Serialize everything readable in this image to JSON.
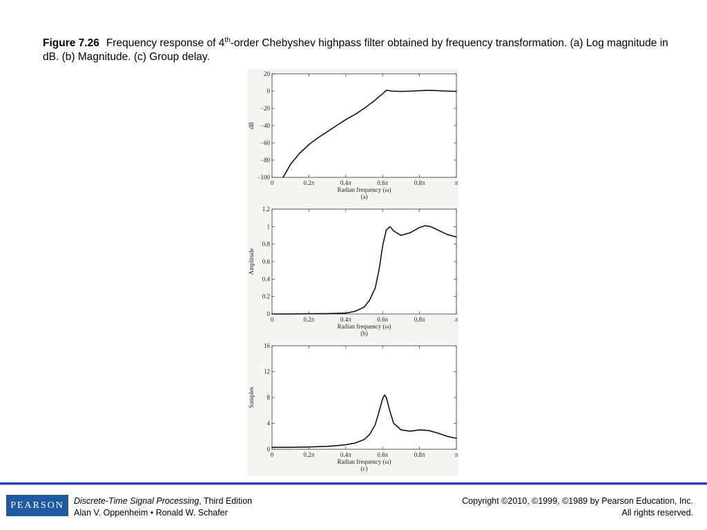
{
  "caption": {
    "figure_label": "Figure 7.26",
    "text_before_sup": "Frequency response of 4",
    "superscript": "th",
    "text_after_sup": "-order Chebyshev highpass filter obtained by frequency transformation. (a) Log magnitude in dB. (b) Magnitude. (c) Group delay."
  },
  "footer": {
    "logo": "PEARSON",
    "book_title": "Discrete-Time Signal Processing",
    "edition": ", Third Edition",
    "authors": "Alan V. Oppenheim • Ronald W. Schafer",
    "copyright": "Copyright ©2010, ©1999, ©1989 by Pearson Education, Inc.",
    "rights": "All rights reserved."
  },
  "chart_data": [
    {
      "type": "line",
      "panel_label": "(a)",
      "xlabel": "Radian frequency (ω)",
      "ylabel": "dB",
      "xlim": [
        0,
        1
      ],
      "xticks": [
        0,
        0.2,
        0.4,
        0.6,
        0.8,
        1
      ],
      "xtick_labels": [
        "0",
        "0.2π",
        "0.4π",
        "0.6π",
        "0.8π",
        "π"
      ],
      "ylim": [
        -100,
        20
      ],
      "yticks": [
        20,
        0,
        -20,
        -40,
        -60,
        -80,
        -100
      ],
      "ytick_labels": [
        "20",
        "0",
        "−20",
        "−40",
        "−60",
        "−80",
        "−100"
      ],
      "x": [
        0.06,
        0.1,
        0.15,
        0.2,
        0.25,
        0.3,
        0.35,
        0.4,
        0.45,
        0.5,
        0.55,
        0.6,
        0.62,
        0.65,
        0.7,
        0.75,
        0.8,
        0.85,
        0.9,
        0.95,
        1.0
      ],
      "y": [
        -100,
        -85,
        -72,
        -62,
        -54,
        -47,
        -40,
        -33,
        -27,
        -20,
        -12,
        -3,
        1,
        0,
        -0.5,
        0,
        0.5,
        1,
        0.5,
        0,
        -0.3
      ]
    },
    {
      "type": "line",
      "panel_label": "(b)",
      "xlabel": "Radian frequency (ω)",
      "ylabel": "Amplitude",
      "xlim": [
        0,
        1
      ],
      "xticks": [
        0,
        0.2,
        0.4,
        0.6,
        0.8,
        1
      ],
      "xtick_labels": [
        "0",
        "0.2π",
        "0.4π",
        "0.6π",
        "0.8π",
        "π"
      ],
      "ylim": [
        0,
        1.2
      ],
      "yticks": [
        1.2,
        1,
        0.8,
        0.6,
        0.4,
        0.2,
        0
      ],
      "ytick_labels": [
        "1.2",
        "1",
        "0.8",
        "0.6",
        "0.4",
        "0.2",
        "0"
      ],
      "x": [
        0,
        0.1,
        0.2,
        0.3,
        0.4,
        0.45,
        0.5,
        0.53,
        0.56,
        0.58,
        0.6,
        0.62,
        0.64,
        0.66,
        0.7,
        0.75,
        0.8,
        0.83,
        0.86,
        0.9,
        0.95,
        1.0
      ],
      "y": [
        0,
        0.001,
        0.003,
        0.005,
        0.01,
        0.03,
        0.08,
        0.16,
        0.3,
        0.5,
        0.78,
        0.96,
        1.0,
        0.95,
        0.9,
        0.93,
        0.99,
        1.01,
        1.0,
        0.96,
        0.91,
        0.88
      ]
    },
    {
      "type": "line",
      "panel_label": "(c)",
      "xlabel": "Radian frequency (ω)",
      "ylabel": "Samples",
      "xlim": [
        0,
        1
      ],
      "xticks": [
        0,
        0.2,
        0.4,
        0.6,
        0.8,
        1
      ],
      "xtick_labels": [
        "0",
        "0.2π",
        "0.4π",
        "0.6π",
        "0.8π",
        "π"
      ],
      "ylim": [
        0,
        16
      ],
      "yticks": [
        16,
        12,
        8,
        4,
        0
      ],
      "ytick_labels": [
        "16",
        "12",
        "8",
        "4",
        "0"
      ],
      "x": [
        0,
        0.1,
        0.2,
        0.3,
        0.35,
        0.4,
        0.45,
        0.5,
        0.53,
        0.56,
        0.58,
        0.6,
        0.61,
        0.62,
        0.64,
        0.66,
        0.7,
        0.75,
        0.8,
        0.85,
        0.9,
        0.95,
        1.0
      ],
      "y": [
        0.3,
        0.3,
        0.35,
        0.45,
        0.55,
        0.7,
        0.95,
        1.5,
        2.3,
        3.8,
        5.8,
        7.8,
        8.4,
        8.0,
        5.8,
        4.0,
        3.0,
        2.8,
        3.0,
        2.9,
        2.5,
        2.0,
        1.7
      ]
    }
  ]
}
